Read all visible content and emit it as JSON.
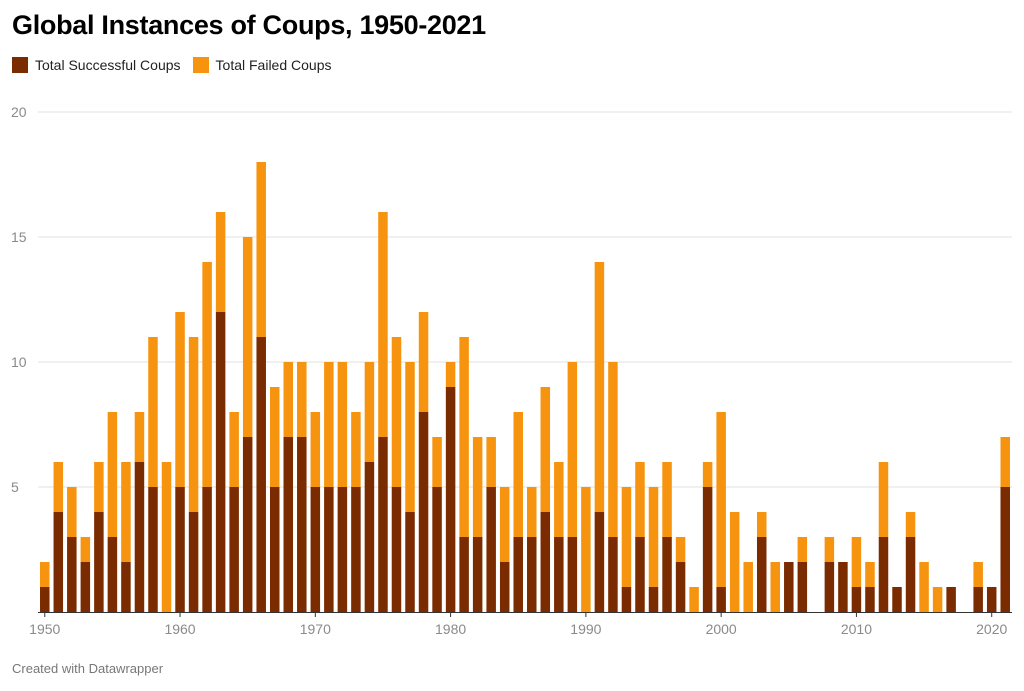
{
  "footer": "Created with Datawrapper",
  "colors": {
    "successful": "#7a2b00",
    "failed": "#f7940f",
    "grid": "#e1e1e1",
    "tick_text": "#8a8a8a",
    "baseline": "#333333"
  },
  "chart_data": {
    "type": "bar",
    "stacked": true,
    "title": "Global Instances of Coups, 1950-2021",
    "xlabel": "",
    "ylabel": "",
    "ylim": [
      0,
      20
    ],
    "yticks": [
      5,
      10,
      15,
      20
    ],
    "xticks": [
      1950,
      1960,
      1970,
      1980,
      1990,
      2000,
      2010,
      2020
    ],
    "grid": true,
    "legend_position": "top-left",
    "x": [
      1950,
      1951,
      1952,
      1953,
      1954,
      1955,
      1956,
      1957,
      1958,
      1959,
      1960,
      1961,
      1962,
      1963,
      1964,
      1965,
      1966,
      1967,
      1968,
      1969,
      1970,
      1971,
      1972,
      1973,
      1974,
      1975,
      1976,
      1977,
      1978,
      1979,
      1980,
      1981,
      1982,
      1983,
      1984,
      1985,
      1986,
      1987,
      1988,
      1989,
      1990,
      1991,
      1992,
      1993,
      1994,
      1995,
      1996,
      1997,
      1998,
      1999,
      2000,
      2001,
      2002,
      2003,
      2004,
      2005,
      2006,
      2007,
      2008,
      2009,
      2010,
      2011,
      2012,
      2013,
      2014,
      2015,
      2016,
      2017,
      2018,
      2019,
      2020,
      2021
    ],
    "series": [
      {
        "name": "Total Successful Coups",
        "values": [
          1,
          4,
          3,
          2,
          4,
          3,
          2,
          6,
          5,
          0,
          5,
          4,
          5,
          12,
          5,
          7,
          11,
          5,
          7,
          7,
          5,
          5,
          5,
          5,
          6,
          7,
          5,
          4,
          8,
          5,
          9,
          3,
          3,
          5,
          2,
          3,
          3,
          4,
          3,
          3,
          0,
          4,
          3,
          1,
          3,
          1,
          3,
          2,
          0,
          5,
          1,
          0,
          0,
          3,
          0,
          2,
          2,
          0,
          2,
          2,
          1,
          1,
          3,
          1,
          3,
          0,
          0,
          1,
          0,
          1,
          1,
          5
        ]
      },
      {
        "name": "Total Failed Coups",
        "values": [
          1,
          2,
          2,
          1,
          2,
          5,
          4,
          2,
          6,
          6,
          7,
          7,
          9,
          4,
          3,
          8,
          7,
          4,
          3,
          3,
          3,
          5,
          5,
          3,
          4,
          9,
          6,
          6,
          4,
          2,
          1,
          8,
          4,
          2,
          3,
          5,
          2,
          5,
          3,
          7,
          5,
          10,
          7,
          4,
          3,
          4,
          3,
          1,
          1,
          1,
          7,
          4,
          2,
          1,
          2,
          0,
          1,
          0,
          1,
          0,
          2,
          1,
          3,
          0,
          1,
          2,
          1,
          0,
          0,
          1,
          0,
          2
        ]
      }
    ]
  }
}
